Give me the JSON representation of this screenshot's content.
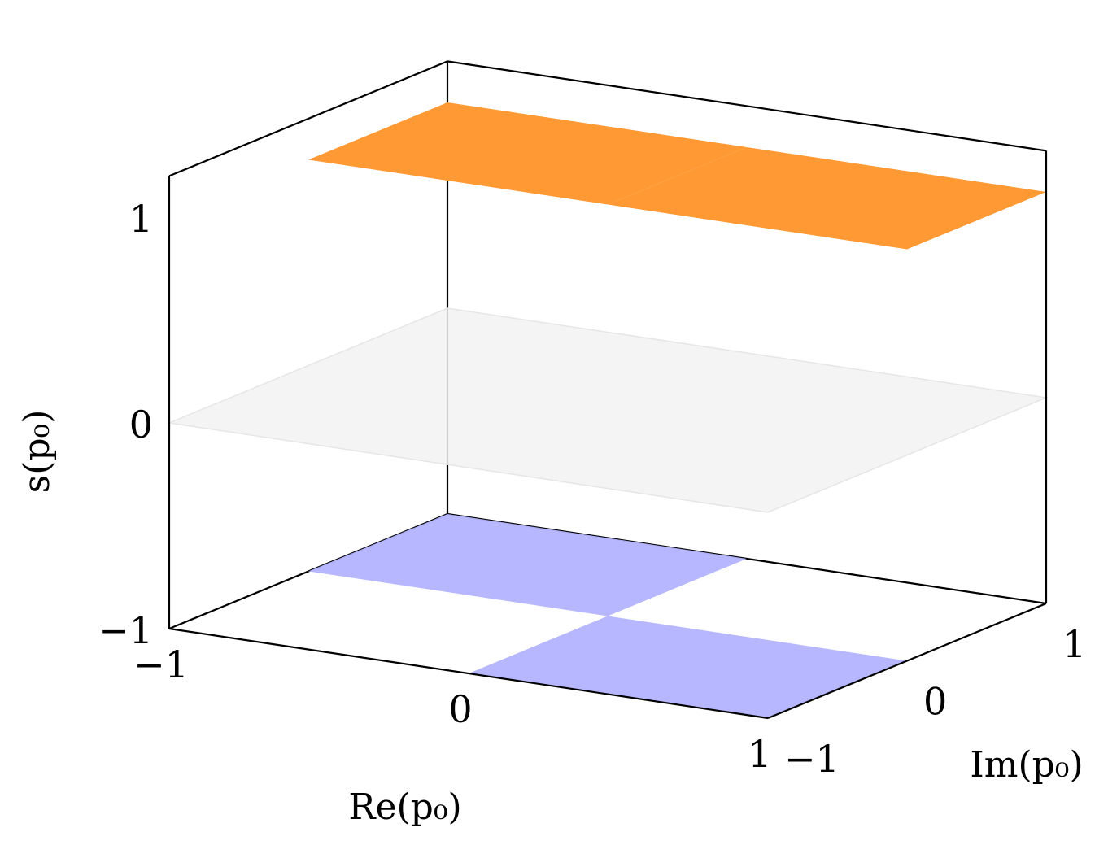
{
  "chart_data": {
    "type": "surface-3d",
    "title": "",
    "xlabel": "Re(p₀)",
    "ylabel": "Im(p₀)",
    "zlabel": "s(p₀)",
    "xlim": [
      -1,
      1
    ],
    "ylim": [
      -1,
      1
    ],
    "zlim": [
      -1,
      1.2
    ],
    "x_ticks": [
      "−1",
      "0",
      "1"
    ],
    "y_ticks": [
      "−1",
      "0",
      "1"
    ],
    "z_ticks": [
      "−1",
      "0",
      "1"
    ],
    "grid": false,
    "colors": {
      "positive": "#ff9933",
      "negative": "#b3b3ff",
      "zero_plane": "#f2f2f2",
      "axes": "#000000"
    },
    "series": [
      {
        "name": "",
        "re": [
          -1,
          0
        ],
        "im": [
          0,
          1
        ],
        "value": 1,
        "color_key": "positive"
      },
      {
        "name": "",
        "re": [
          0,
          1
        ],
        "im": [
          0,
          1
        ],
        "value": 1,
        "color_key": "positive"
      },
      {
        "name": "",
        "re": [
          -1,
          0
        ],
        "im": [
          0,
          1
        ],
        "value": -1,
        "color_key": "negative"
      },
      {
        "name": "",
        "re": [
          0,
          1
        ],
        "im": [
          -1,
          0
        ],
        "value": -1,
        "color_key": "negative"
      },
      {
        "name": "",
        "re": [
          -1,
          1
        ],
        "im": [
          -1,
          1
        ],
        "value": 0,
        "color_key": "zero_plane"
      }
    ]
  }
}
